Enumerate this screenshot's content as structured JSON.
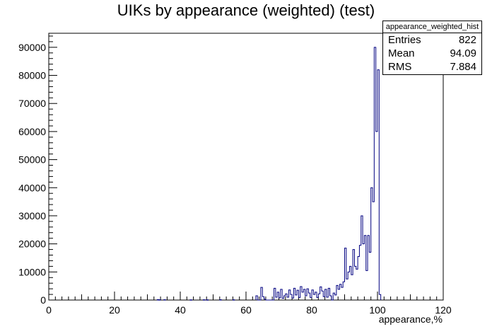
{
  "title": "UIKs by appearance (weighted) (test)",
  "stats_box": {
    "name": "appearance_weighted_hist",
    "rows": [
      {
        "label": "Entries",
        "value": "822"
      },
      {
        "label": "Mean",
        "value": "94.09"
      },
      {
        "label": "RMS",
        "value": "7.884"
      }
    ]
  },
  "chart_data": {
    "type": "bar",
    "title": "UIKs by appearance (weighted) (test)",
    "xlabel": "appearance,%",
    "ylabel": "",
    "xlim": [
      0,
      120
    ],
    "ylim": [
      0,
      95000
    ],
    "xticks": [
      0,
      20,
      40,
      60,
      80,
      100,
      120
    ],
    "yticks": [
      0,
      10000,
      20000,
      30000,
      40000,
      50000,
      60000,
      70000,
      80000,
      90000
    ],
    "grid": false,
    "line_color": "#000080",
    "bins": [
      {
        "x": 63.0,
        "y": 1500
      },
      {
        "x": 64.0,
        "y": 0
      },
      {
        "x": 64.5,
        "y": 4500
      },
      {
        "x": 65.0,
        "y": 1200
      },
      {
        "x": 65.5,
        "y": 300
      },
      {
        "x": 68.5,
        "y": 4200
      },
      {
        "x": 69.0,
        "y": 1000
      },
      {
        "x": 69.5,
        "y": 2800
      },
      {
        "x": 70.0,
        "y": 800
      },
      {
        "x": 70.5,
        "y": 3800
      },
      {
        "x": 71.0,
        "y": 600
      },
      {
        "x": 71.5,
        "y": 1500
      },
      {
        "x": 72.0,
        "y": 2200
      },
      {
        "x": 72.5,
        "y": 1000
      },
      {
        "x": 73.0,
        "y": 3600
      },
      {
        "x": 73.5,
        "y": 2000
      },
      {
        "x": 74.0,
        "y": 700
      },
      {
        "x": 74.5,
        "y": 4200
      },
      {
        "x": 75.0,
        "y": 1800
      },
      {
        "x": 75.5,
        "y": 3500
      },
      {
        "x": 76.0,
        "y": 900
      },
      {
        "x": 76.5,
        "y": 4800
      },
      {
        "x": 77.0,
        "y": 2800
      },
      {
        "x": 77.5,
        "y": 3800
      },
      {
        "x": 78.0,
        "y": 1500
      },
      {
        "x": 78.5,
        "y": 4000
      },
      {
        "x": 79.0,
        "y": 2500
      },
      {
        "x": 79.5,
        "y": 900
      },
      {
        "x": 80.0,
        "y": 3600
      },
      {
        "x": 80.5,
        "y": 2000
      },
      {
        "x": 81.0,
        "y": 2800
      },
      {
        "x": 81.5,
        "y": 900
      },
      {
        "x": 82.0,
        "y": 2200
      },
      {
        "x": 82.5,
        "y": 4700
      },
      {
        "x": 83.0,
        "y": 3200
      },
      {
        "x": 83.5,
        "y": 1200
      },
      {
        "x": 84.0,
        "y": 3800
      },
      {
        "x": 84.5,
        "y": 1000
      },
      {
        "x": 85.0,
        "y": 4200
      },
      {
        "x": 85.5,
        "y": 1500
      },
      {
        "x": 86.0,
        "y": 0
      },
      {
        "x": 86.5,
        "y": 2500
      },
      {
        "x": 87.0,
        "y": 1800
      },
      {
        "x": 87.5,
        "y": 5200
      },
      {
        "x": 88.0,
        "y": 3800
      },
      {
        "x": 88.5,
        "y": 5600
      },
      {
        "x": 89.0,
        "y": 4500
      },
      {
        "x": 89.5,
        "y": 6500
      },
      {
        "x": 90.0,
        "y": 18500
      },
      {
        "x": 90.5,
        "y": 7500
      },
      {
        "x": 91.0,
        "y": 10000
      },
      {
        "x": 91.5,
        "y": 12000
      },
      {
        "x": 92.0,
        "y": 9000
      },
      {
        "x": 92.5,
        "y": 18000
      },
      {
        "x": 93.0,
        "y": 12000
      },
      {
        "x": 93.5,
        "y": 11000
      },
      {
        "x": 94.0,
        "y": 15500
      },
      {
        "x": 94.5,
        "y": 19500
      },
      {
        "x": 95.0,
        "y": 30000
      },
      {
        "x": 95.5,
        "y": 20000
      },
      {
        "x": 96.0,
        "y": 23000
      },
      {
        "x": 96.5,
        "y": 10500
      },
      {
        "x": 97.0,
        "y": 23000
      },
      {
        "x": 97.5,
        "y": 17000
      },
      {
        "x": 98.0,
        "y": 40000
      },
      {
        "x": 98.5,
        "y": 35000
      },
      {
        "x": 99.0,
        "y": 90000
      },
      {
        "x": 99.5,
        "y": 60000
      },
      {
        "x": 100.0,
        "y": 82000
      },
      {
        "x": 100.5,
        "y": 2000
      }
    ],
    "bin_width": 0.5,
    "scatter_low": [
      {
        "x": 33.0,
        "y": 150
      },
      {
        "x": 33.5,
        "y": 100
      },
      {
        "x": 35.0,
        "y": 120
      },
      {
        "x": 43.0,
        "y": 80
      },
      {
        "x": 47.0,
        "y": 100
      },
      {
        "x": 48.0,
        "y": 80
      },
      {
        "x": 52.0,
        "y": 120
      },
      {
        "x": 56.0,
        "y": 100
      }
    ]
  }
}
